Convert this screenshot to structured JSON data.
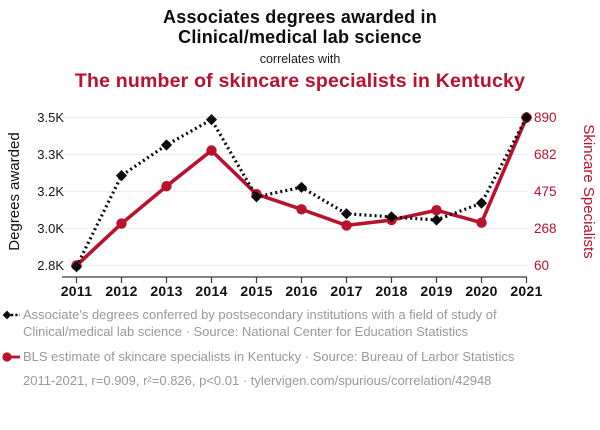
{
  "header": {
    "title_line1": "Associates degrees awarded in",
    "title_line2": "Clinical/medical lab science",
    "connector": "correlates with",
    "subtitle": "The number of skincare specialists in Kentucky"
  },
  "colors": {
    "accent_red": "#b9122e",
    "series_black": "#0d0d0d",
    "legend_gray": "#999999",
    "grid_line": "#f1edee",
    "axis_line": "#3a3a3a"
  },
  "chart_data": {
    "type": "line",
    "x": [
      2011,
      2012,
      2013,
      2014,
      2015,
      2016,
      2017,
      2018,
      2019,
      2020,
      2021
    ],
    "x_tick_labels": [
      "2011",
      "2012",
      "2013",
      "2014",
      "2015",
      "2016",
      "2017",
      "2018",
      "2019",
      "2020",
      "2021"
    ],
    "series": [
      {
        "name": "Associates degrees awarded in Clinical/medical lab science",
        "axis": "left",
        "line_style": "dotted",
        "marker": "diamond",
        "color": "#0d0d0d",
        "values": [
          2795,
          3225,
          3370,
          3490,
          3125,
          3170,
          3045,
          3030,
          3015,
          3095,
          3500
        ]
      },
      {
        "name": "The number of skincare specialists in Kentucky",
        "axis": "right",
        "line_style": "solid",
        "marker": "circle",
        "color": "#b9122e",
        "values": [
          60,
          295,
          505,
          705,
          460,
          375,
          285,
          315,
          370,
          300,
          890
        ]
      }
    ],
    "left_axis": {
      "label": "Degrees awarded",
      "range": [
        2800,
        3500
      ],
      "tick_values": [
        3500,
        3325,
        3150,
        2975,
        2800
      ],
      "tick_labels": [
        "3.5K",
        "3.3K",
        "3.2K",
        "3.0K",
        "2.8K"
      ]
    },
    "right_axis": {
      "label": "Skincare Specialists",
      "range": [
        60,
        890
      ],
      "tick_values": [
        890,
        682.5,
        475,
        267.5,
        60
      ],
      "tick_labels": [
        "890",
        "682",
        "475",
        "268",
        "60"
      ]
    },
    "grid": "horizontal",
    "legend_position": "bottom-left"
  },
  "legend": {
    "series1_label": "Associate's degrees conferred by postsecondary institutions with a field of study of Clinical/medical lab science · Source: National Center for Education Statistics",
    "series2_label": "BLS estimate of skincare specialists in Kentucky · Source: Bureau of Larbor Statistics"
  },
  "footer": {
    "text": "2011-2021, r=0.909, r²=0.826, p<0.01 · tylervigen.com/spurious/correlation/42948"
  }
}
